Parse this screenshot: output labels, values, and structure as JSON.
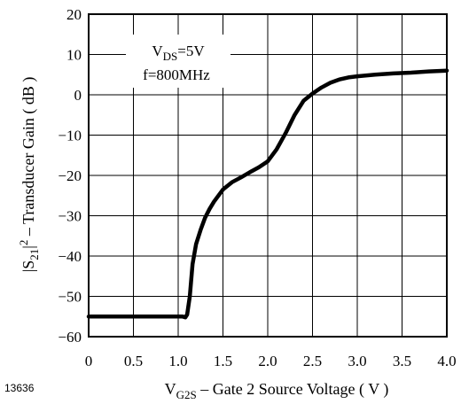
{
  "chart_data": {
    "type": "line",
    "figure_id": "13636",
    "xlabel": {
      "main": "V",
      "sub": "G2S",
      "rest": " – Gate 2 Source Voltage ( V )"
    },
    "ylabel": {
      "pre": "|S",
      "sub": "21",
      "mid": "|",
      "sup": "2",
      "rest": " – Transducer Gain ( dB )"
    },
    "xlim": [
      0,
      4.0
    ],
    "ylim": [
      -60,
      20
    ],
    "xticks": [
      "0",
      "0.5",
      "1.0",
      "1.5",
      "2.0",
      "2.5",
      "3.0",
      "3.5",
      "4.0"
    ],
    "yticks": [
      "20",
      "10",
      "0",
      "−10",
      "−20",
      "−30",
      "−40",
      "−50",
      "−60"
    ],
    "grid": true,
    "annotations": [
      {
        "main": "V",
        "sub": "DS",
        "rest": "=5V"
      },
      {
        "text": "f=800MHz"
      }
    ],
    "series": [
      {
        "x": [
          0,
          0.5,
          1.0,
          1.05,
          1.08,
          1.1,
          1.13,
          1.16,
          1.2,
          1.25,
          1.3,
          1.35,
          1.4,
          1.5,
          1.6,
          1.7,
          1.8,
          1.9,
          2.0,
          2.1,
          2.2,
          2.3,
          2.4,
          2.5,
          2.6,
          2.7,
          2.8,
          2.9,
          3.0,
          3.2,
          3.4,
          3.6,
          3.8,
          4.0
        ],
        "y": [
          -55,
          -55,
          -55,
          -55,
          -55.2,
          -54.5,
          -50,
          -42,
          -37,
          -33.5,
          -30.5,
          -28.3,
          -26.5,
          -23.5,
          -21.7,
          -20.5,
          -19.2,
          -18,
          -16.5,
          -13.5,
          -9.5,
          -5,
          -1.5,
          0.3,
          1.8,
          3,
          3.8,
          4.3,
          4.6,
          5,
          5.3,
          5.5,
          5.8,
          6
        ]
      }
    ]
  }
}
